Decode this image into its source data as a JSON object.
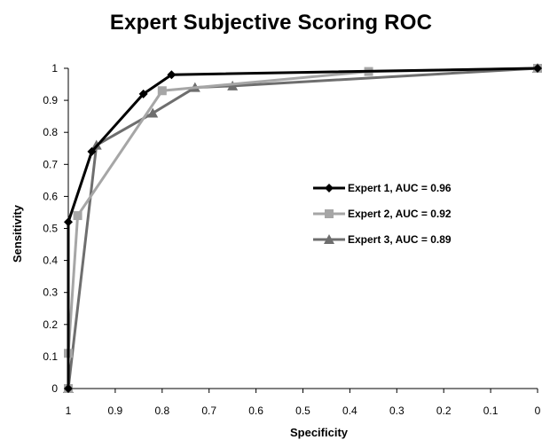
{
  "chart_data": {
    "type": "line",
    "title": "Expert Subjective Scoring ROC",
    "xlabel": "Specificity",
    "ylabel": "Sensitivity",
    "xlim": [
      1,
      0
    ],
    "ylim": [
      0,
      1
    ],
    "x_reversed": true,
    "x_ticks": [
      1,
      0.9,
      0.8,
      0.7,
      0.6,
      0.5,
      0.4,
      0.3,
      0.2,
      0.1,
      0
    ],
    "x_tick_labels": [
      "1",
      "0.9",
      "0.8",
      "0.7",
      "0.6",
      "0.5",
      "0.4",
      "0.3",
      "0.2",
      "0.1",
      "0"
    ],
    "y_ticks": [
      0,
      0.1,
      0.2,
      0.3,
      0.4,
      0.5,
      0.6,
      0.7,
      0.8,
      0.9,
      1
    ],
    "y_tick_labels": [
      "0",
      "0.1",
      "0.2",
      "0.3",
      "0.4",
      "0.5",
      "0.6",
      "0.7",
      "0.8",
      "0.9",
      "1"
    ],
    "grid": false,
    "legend_position": "center-right",
    "series": [
      {
        "name": "Expert 1, AUC = 0.96",
        "color": "#000000",
        "marker": "diamond",
        "x": [
          1,
          1,
          0.95,
          0.84,
          0.78,
          0
        ],
        "y": [
          0,
          0.52,
          0.74,
          0.92,
          0.98,
          1
        ]
      },
      {
        "name": "Expert 2, AUC = 0.92",
        "color": "#a6a6a6",
        "marker": "square",
        "x": [
          1,
          1,
          0.98,
          0.8,
          0.36,
          0
        ],
        "y": [
          0,
          0.11,
          0.54,
          0.93,
          0.99,
          1
        ]
      },
      {
        "name": "Expert 3, AUC = 0.89",
        "color": "#6e6e6e",
        "marker": "triangle",
        "x": [
          1,
          0.94,
          0.82,
          0.73,
          0.65,
          0
        ],
        "y": [
          0,
          0.76,
          0.86,
          0.94,
          0.945,
          1
        ]
      }
    ]
  }
}
